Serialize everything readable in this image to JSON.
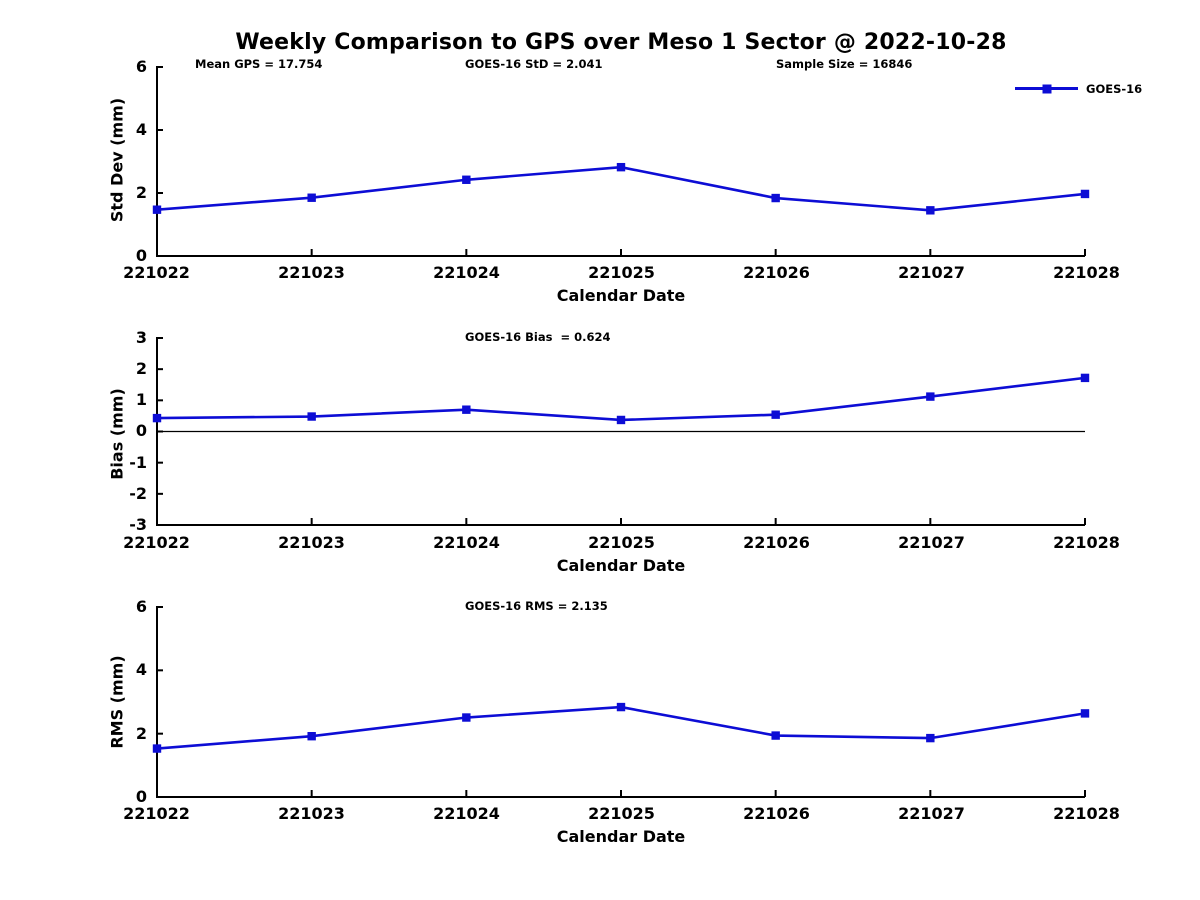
{
  "colors": {
    "series_blue": "#0d0dd5",
    "axis": "#000000",
    "zero_line": "#000000",
    "background": "#ffffff"
  },
  "chart_data": [
    {
      "type": "line",
      "title": "Weekly Comparison to GPS over Meso 1 Sector @ 2022-10-28",
      "annotations": [
        "Mean GPS = 17.754",
        "GOES-16 StD = 2.041",
        "Sample Size = 16846"
      ],
      "xlabel": "Calendar Date",
      "ylabel": "Std Dev (mm)",
      "categories": [
        "221022",
        "221023",
        "221024",
        "221025",
        "221026",
        "221027",
        "221028"
      ],
      "series": [
        {
          "name": "GOES-16",
          "values": [
            1.47,
            1.85,
            2.42,
            2.82,
            1.84,
            1.45,
            1.97
          ]
        }
      ],
      "ylim": [
        0,
        6
      ],
      "yticks": [
        0,
        2,
        4,
        6
      ],
      "grid": false,
      "legend_position": "top-right",
      "legend_label": "GOES-16"
    },
    {
      "type": "line",
      "title": "GOES-16 Bias  = 0.624",
      "xlabel": "Calendar Date",
      "ylabel": "Bias (mm)",
      "categories": [
        "221022",
        "221023",
        "221024",
        "221025",
        "221026",
        "221027",
        "221028"
      ],
      "series": [
        {
          "name": "GOES-16",
          "values": [
            0.43,
            0.48,
            0.7,
            0.37,
            0.54,
            1.12,
            1.72
          ]
        }
      ],
      "ylim": [
        -3,
        3
      ],
      "yticks": [
        -3,
        -2,
        -1,
        0,
        1,
        2,
        3
      ],
      "zero_line": true,
      "grid": false
    },
    {
      "type": "line",
      "title": "GOES-16 RMS = 2.135",
      "xlabel": "Calendar Date",
      "ylabel": "RMS (mm)",
      "categories": [
        "221022",
        "221023",
        "221024",
        "221025",
        "221026",
        "221027",
        "221028"
      ],
      "series": [
        {
          "name": "GOES-16",
          "values": [
            1.53,
            1.92,
            2.51,
            2.84,
            1.94,
            1.86,
            2.64
          ]
        }
      ],
      "ylim": [
        0,
        6
      ],
      "yticks": [
        0,
        2,
        4,
        6
      ],
      "grid": false
    }
  ]
}
